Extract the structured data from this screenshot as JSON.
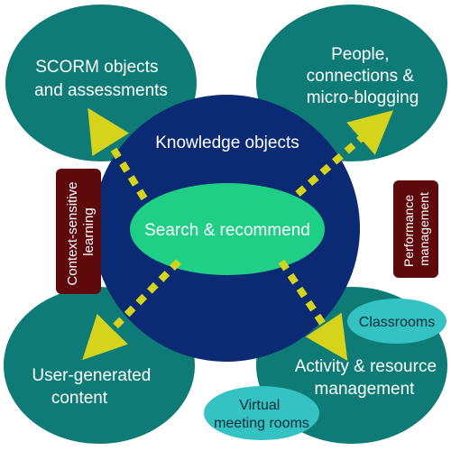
{
  "colors": {
    "teal": "#0f7b76",
    "navy": "#0b2a74",
    "green_ellipse": "#1fcf86",
    "light_teal": "#35c2c3",
    "maroon": "#5e0a0d",
    "arrow_yellow": "#d6d31c",
    "text_light": "#ffffff",
    "text_dark": "#0b2a3a"
  },
  "circles": {
    "top_left": {
      "line1": "SCORM objects",
      "line2": "and assessments"
    },
    "top_right": {
      "line1": "People,",
      "line2": "connections &",
      "line3": "micro-blogging"
    },
    "bottom_left": {
      "line1": "User-generated",
      "line2": "content"
    },
    "bottom_right": {
      "line1": "Activity & resource",
      "line2": "management"
    }
  },
  "center": {
    "label": "Knowledge objects",
    "ellipse_label": "Search & recommend"
  },
  "side_boxes": {
    "left": {
      "line1": "Context-sensitive",
      "line2": "learning"
    },
    "right": {
      "line1": "Performance",
      "line2": "management"
    }
  },
  "bubbles": {
    "classrooms": "Classrooms",
    "virtual": {
      "line1": "Virtual",
      "line2": "meeting rooms"
    }
  }
}
